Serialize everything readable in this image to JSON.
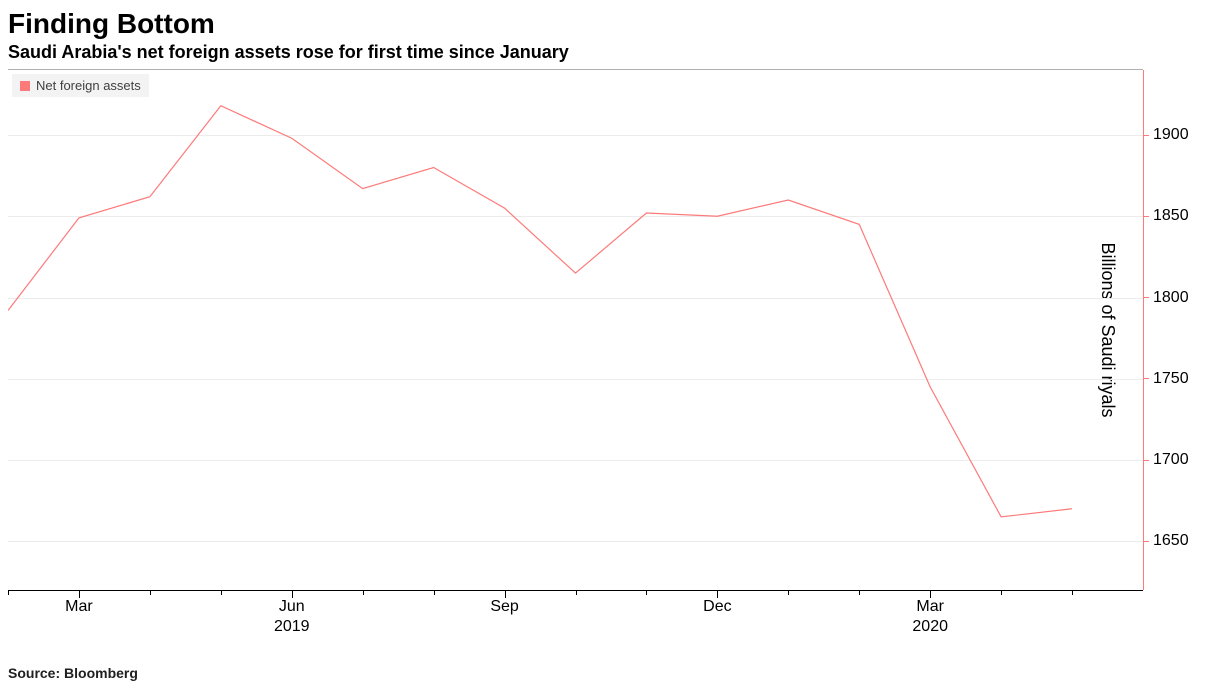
{
  "title": "Finding Bottom",
  "subtitle": "Saudi Arabia's net foreign assets rose for first time since January",
  "source": "Source: Bloomberg",
  "legend": {
    "label": "Net foreign assets",
    "swatch_color": "#fd7a7a"
  },
  "chart": {
    "type": "line",
    "background_color": "#ffffff",
    "grid_color": "#ececec",
    "axis_color": "#000000",
    "top_border_color": "#b0b0b0",
    "line_color": "#fd7a7a",
    "line_width": 1.2,
    "yaxis": {
      "side": "right",
      "label": "Billions of Saudi riyals",
      "label_fontsize": 18,
      "tick_fontsize": 16,
      "tick_color": "#fd7a7a",
      "ylim": [
        1620,
        1940
      ],
      "ticks": [
        1650,
        1700,
        1750,
        1800,
        1850,
        1900
      ]
    },
    "xaxis": {
      "xlim_months": [
        0,
        16
      ],
      "tick_fontsize": 16,
      "major_ticks": [
        {
          "month_index": 1,
          "label": "Mar"
        },
        {
          "month_index": 4,
          "label": "Jun"
        },
        {
          "month_index": 7,
          "label": "Sep"
        },
        {
          "month_index": 10,
          "label": "Dec"
        },
        {
          "month_index": 13,
          "label": "Mar"
        }
      ],
      "minor_tick_months": [
        0,
        2,
        3,
        5,
        6,
        8,
        9,
        11,
        12,
        14,
        15
      ],
      "year_labels": [
        {
          "month_index": 4,
          "label": "2019"
        },
        {
          "month_index": 13,
          "label": "2020"
        }
      ]
    },
    "series": [
      {
        "month_index": 0,
        "value": 1792
      },
      {
        "month_index": 1,
        "value": 1849
      },
      {
        "month_index": 2,
        "value": 1862
      },
      {
        "month_index": 3,
        "value": 1918
      },
      {
        "month_index": 4,
        "value": 1898
      },
      {
        "month_index": 5,
        "value": 1867
      },
      {
        "month_index": 6,
        "value": 1880
      },
      {
        "month_index": 7,
        "value": 1855
      },
      {
        "month_index": 8,
        "value": 1815
      },
      {
        "month_index": 9,
        "value": 1852
      },
      {
        "month_index": 10,
        "value": 1850
      },
      {
        "month_index": 11,
        "value": 1860
      },
      {
        "month_index": 12,
        "value": 1845
      },
      {
        "month_index": 13,
        "value": 1745
      },
      {
        "month_index": 14,
        "value": 1665
      },
      {
        "month_index": 15,
        "value": 1670
      }
    ]
  }
}
